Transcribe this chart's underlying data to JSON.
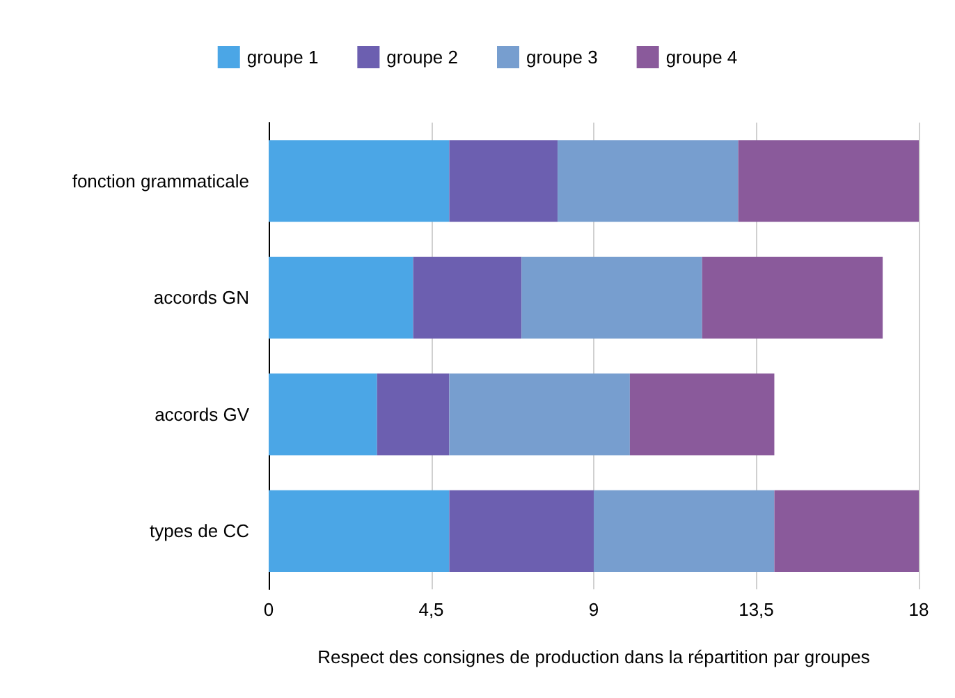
{
  "chart_data": {
    "type": "bar",
    "orientation": "horizontal",
    "stacked": true,
    "xlabel": "Respect des consignes de production dans la répartition par groupes",
    "categories": [
      "fonction grammaticale",
      "accords GN",
      "accords GV",
      "types de CC"
    ],
    "series": [
      {
        "name": "groupe 1",
        "color": "#4ba6e6",
        "values": [
          5,
          4,
          3,
          5
        ]
      },
      {
        "name": "groupe 2",
        "color": "#6c5fb0",
        "values": [
          3,
          3,
          2,
          4
        ]
      },
      {
        "name": "groupe 3",
        "color": "#779ecf",
        "values": [
          5,
          5,
          5,
          5
        ]
      },
      {
        "name": "groupe 4",
        "color": "#8a5a9b",
        "values": [
          5,
          5,
          4,
          4
        ]
      }
    ],
    "xlim": [
      0,
      18
    ],
    "xticks": [
      0,
      {
        "value": 4.5,
        "label": "4,5"
      },
      9,
      {
        "value": 13.5,
        "label": "13,5"
      },
      18
    ],
    "grid": "x",
    "legend": "top"
  }
}
